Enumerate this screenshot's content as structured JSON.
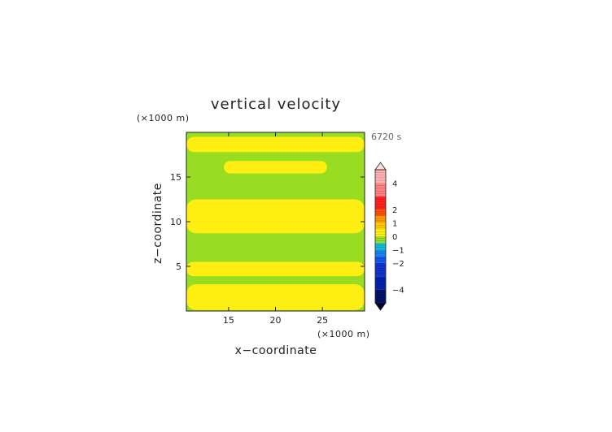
{
  "chart_data": {
    "type": "heatmap",
    "title": "vertical velocity",
    "xlabel": "x−coordinate",
    "ylabel": "z−coordinate",
    "x_unit": "(×1000 m)",
    "y_unit": "(×1000 m)",
    "time_label": "6720 s",
    "xlim": [
      10.5,
      29.5
    ],
    "ylim": [
      0,
      20
    ],
    "x_ticks": [
      "15",
      "20",
      "25"
    ],
    "x_tick_values": [
      15,
      20,
      25
    ],
    "y_ticks": [
      "5",
      "10",
      "15"
    ],
    "y_tick_values": [
      5,
      10,
      15
    ],
    "background_level_color": "#99dd22",
    "positive_region_color": "#ffee11",
    "regions": [
      {
        "level": "0 to 0.5",
        "x": [
          10.5,
          29.5
        ],
        "z": [
          17.8,
          19.5
        ]
      },
      {
        "level": "0 to 0.5",
        "x": [
          14.5,
          25.5
        ],
        "z": [
          15.4,
          16.8
        ]
      },
      {
        "level": "0 to 0.5",
        "x": [
          10.5,
          29.5
        ],
        "z": [
          8.7,
          12.5
        ]
      },
      {
        "level": "0 to 0.5",
        "x": [
          10.5,
          29.5
        ],
        "z": [
          3.9,
          5.5
        ]
      },
      {
        "level": "0 to 0.5",
        "x": [
          10.5,
          29.5
        ],
        "z": [
          0.1,
          3.0
        ]
      }
    ],
    "colorbar": {
      "tick_labels": [
        "4",
        "2",
        "1",
        "0",
        "−1",
        "−2",
        "−4"
      ],
      "tick_values": [
        4,
        2,
        1,
        0,
        -1,
        -2,
        -4
      ],
      "range": [
        -5,
        5
      ],
      "segments": [
        {
          "from": 4,
          "to": 5,
          "color": "#ffb0b0"
        },
        {
          "from": 3,
          "to": 4,
          "color": "#ff8080"
        },
        {
          "from": 2,
          "to": 3,
          "color": "#ff2020"
        },
        {
          "from": 1.5,
          "to": 2,
          "color": "#ff5000"
        },
        {
          "from": 1,
          "to": 1.5,
          "color": "#ff9900"
        },
        {
          "from": 0.5,
          "to": 1,
          "color": "#ffcc00"
        },
        {
          "from": 0,
          "to": 0.5,
          "color": "#ffee11"
        },
        {
          "from": -0.5,
          "to": 0,
          "color": "#99dd22"
        },
        {
          "from": -1,
          "to": -0.5,
          "color": "#11bbcc"
        },
        {
          "from": -1.5,
          "to": -1,
          "color": "#1188ee"
        },
        {
          "from": -2,
          "to": -1.5,
          "color": "#1155ee"
        },
        {
          "from": -3,
          "to": -2,
          "color": "#1133cc"
        },
        {
          "from": -4,
          "to": -3,
          "color": "#0022aa"
        },
        {
          "from": -5,
          "to": -4,
          "color": "#001166"
        }
      ],
      "over_color": "#ffdddd",
      "under_color": "#000033"
    }
  }
}
